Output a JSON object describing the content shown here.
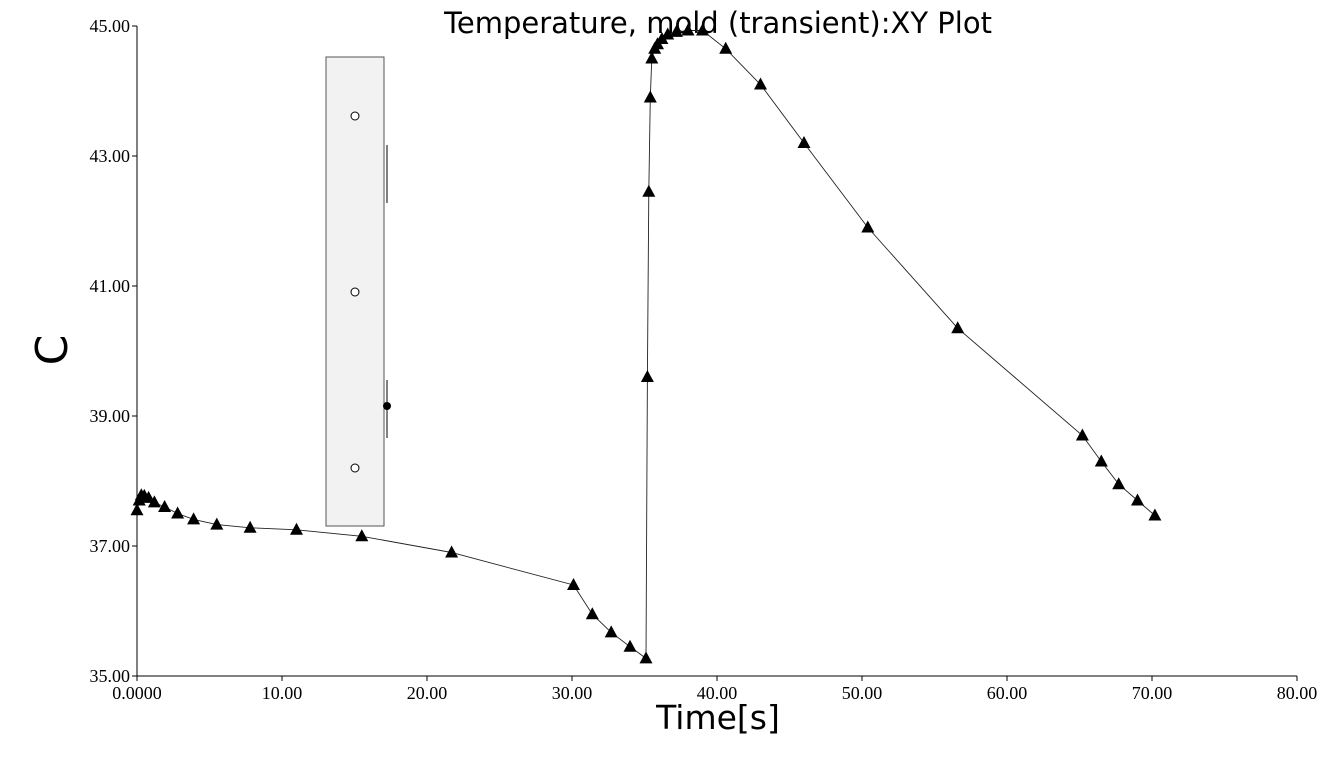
{
  "chart_data": {
    "type": "line",
    "title": "Temperature, mold (transient):XY Plot",
    "xlabel": "Time[s]",
    "ylabel": "C",
    "xlim": [
      0,
      80
    ],
    "ylim": [
      35,
      45
    ],
    "x_ticks": [
      "0.0000",
      "10.00",
      "20.00",
      "30.00",
      "40.00",
      "50.00",
      "60.00",
      "70.00",
      "80.00"
    ],
    "y_ticks": [
      "35.00",
      "37.00",
      "39.00",
      "41.00",
      "43.00",
      "45.00"
    ],
    "grid": false,
    "marker": "triangle",
    "line_color": "#000000",
    "series": [
      {
        "x": [
          0.0,
          0.15,
          0.3,
          0.5,
          0.8,
          1.2,
          1.9,
          2.8,
          3.9,
          5.5,
          7.8,
          11.0,
          15.5,
          21.7,
          30.1,
          31.4,
          32.7,
          34.0,
          35.1,
          35.2,
          35.3,
          35.4,
          35.5,
          35.7,
          35.9,
          36.2,
          36.6,
          37.2,
          38.0,
          39.0,
          40.6,
          43.0,
          46.0,
          50.4,
          56.6,
          65.2,
          66.5,
          67.7,
          69.0,
          70.2
        ],
        "y": [
          37.55,
          37.7,
          37.78,
          37.77,
          37.74,
          37.67,
          37.6,
          37.5,
          37.41,
          37.33,
          37.28,
          37.25,
          37.15,
          36.9,
          36.4,
          35.95,
          35.67,
          35.45,
          35.27,
          39.6,
          42.45,
          43.9,
          44.5,
          44.65,
          44.72,
          44.8,
          44.87,
          44.91,
          44.93,
          44.93,
          44.65,
          44.1,
          43.2,
          41.9,
          40.35,
          38.7,
          38.3,
          37.95,
          37.7,
          37.47
        ]
      }
    ],
    "legend_box": {
      "fill": "#f2f2f2",
      "stroke": "#555555"
    }
  }
}
